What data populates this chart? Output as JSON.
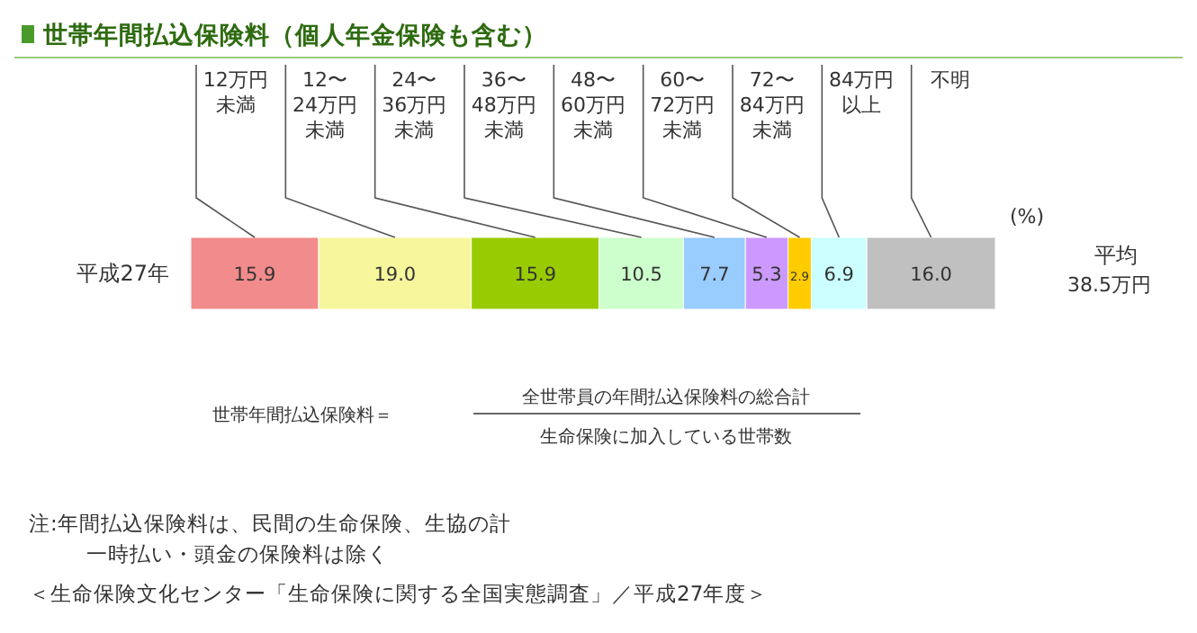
{
  "chart_data": {
    "type": "bar",
    "orientation": "horizontal",
    "stacked": true,
    "title": "世帯年間払込保険料（個人年金保険も含む）",
    "categories": [
      "平成27年"
    ],
    "legend": false,
    "series": [
      {
        "name": "12万円未満",
        "color": "#f28b8b",
        "values": [
          15.9
        ],
        "value_labels": [
          "15.9"
        ]
      },
      {
        "name": "12〜24万円未満",
        "color": "#f6f69c",
        "values": [
          19.0
        ],
        "value_labels": [
          "19.0"
        ]
      },
      {
        "name": "24〜36万円未満",
        "color": "#99cc00",
        "values": [
          15.9
        ],
        "value_labels": [
          "15.9"
        ]
      },
      {
        "name": "36〜48万円未満",
        "color": "#ccffcc",
        "values": [
          10.5
        ],
        "value_labels": [
          "10.5"
        ]
      },
      {
        "name": "48〜60万円未満",
        "color": "#99ccff",
        "values": [
          7.7
        ],
        "value_labels": [
          "7.7"
        ]
      },
      {
        "name": "60〜72万円未満",
        "color": "#cc99ff",
        "values": [
          5.3
        ],
        "value_labels": [
          "5.3"
        ]
      },
      {
        "name": "72〜84万円未満",
        "color": "#ffcc00",
        "values": [
          2.9
        ],
        "value_labels": [
          "2.9"
        ]
      },
      {
        "name": "84万円以上",
        "color": "#ccffff",
        "values": [
          6.9
        ],
        "value_labels": [
          "6.9"
        ]
      },
      {
        "name": "不明",
        "color": "#c0c0c0",
        "values": [
          16.0
        ],
        "value_labels": [
          "16.0"
        ]
      }
    ],
    "annotations": [
      "(%)",
      "平均",
      "38.5万円",
      "世帯年間払込保険料＝",
      "全世帯員の年間払込保険料の総合計",
      "生命保険に加入している世帯数",
      "注:年間払込保険料は、民間の生命保険、生協の計",
      "一時払い・頭金の保険料は除く",
      "＜生命保険文化センター「生命保険に関する全国実態調査」／平成27年度＞"
    ]
  }
}
